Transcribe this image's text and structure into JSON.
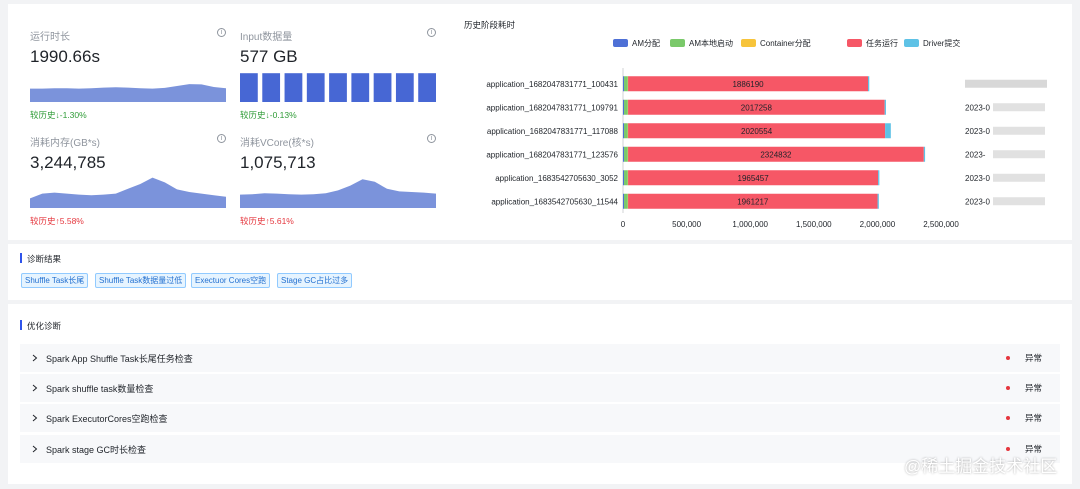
{
  "metrics": [
    {
      "label": "运行时长",
      "value": "1990.66s",
      "compare": "较历史↓-1.30%",
      "trend": "down",
      "spark_type": "area",
      "spark_values": [
        0.42,
        0.42,
        0.43,
        0.43,
        0.42,
        0.43,
        0.45,
        0.46,
        0.45,
        0.43,
        0.42,
        0.44,
        0.5,
        0.56,
        0.55,
        0.47,
        0.43
      ]
    },
    {
      "label": "Input数据量",
      "value": "577 GB",
      "compare": "较历史↓-0.13%",
      "trend": "down",
      "spark_type": "bar",
      "spark_values": [
        0.9,
        0.9,
        0.9,
        0.9,
        0.9,
        0.9,
        0.9,
        0.9,
        0.9
      ]
    },
    {
      "label": "消耗内存(GB*s)",
      "value": "3,244,785",
      "compare": "较历史↑5.58%",
      "trend": "up",
      "spark_type": "area",
      "spark_values": [
        0.3,
        0.45,
        0.48,
        0.45,
        0.42,
        0.4,
        0.42,
        0.45,
        0.6,
        0.75,
        0.95,
        0.8,
        0.58,
        0.5,
        0.45,
        0.4,
        0.35
      ]
    },
    {
      "label": "消耗VCore(核*s)",
      "value": "1,075,713",
      "compare": "较历史↑5.61%",
      "trend": "up",
      "spark_type": "area",
      "spark_values": [
        0.42,
        0.43,
        0.46,
        0.45,
        0.43,
        0.42,
        0.43,
        0.46,
        0.55,
        0.7,
        0.9,
        0.82,
        0.6,
        0.52,
        0.5,
        0.48,
        0.45
      ]
    }
  ],
  "chart_data": {
    "type": "bar",
    "orientation": "horizontal",
    "stacked": true,
    "title": "历史阶段耗时",
    "legend_position": "top",
    "categories": [
      "application_1682047831771_100431",
      "application_1682047831771_109791",
      "application_1682047831771_117088",
      "application_1682047831771_123576",
      "application_1683542705630_3052",
      "application_1683542705630_11544"
    ],
    "dates": [
      "",
      "2023-0",
      "2023-0",
      "2023-",
      "2023-0",
      "2023-0"
    ],
    "series": [
      {
        "name": "AM分配",
        "color": "#4e70d6",
        "values": [
          8000,
          8000,
          8000,
          8000,
          8000,
          8000
        ]
      },
      {
        "name": "AM本地启动",
        "color": "#7ac96a",
        "values": [
          30000,
          30000,
          30000,
          30000,
          30000,
          30000
        ]
      },
      {
        "name": "Container分配",
        "color": "#f7c43b",
        "values": [
          2000,
          2000,
          2000,
          2000,
          2000,
          2000
        ]
      },
      {
        "name": "任务运行",
        "color": "#f65766",
        "values": [
          1886190,
          2017258,
          2020554,
          2324832,
          1965457,
          1961217
        ],
        "labels": [
          "1886190",
          "2017258",
          "2020554",
          "2324832",
          "1965457",
          "1961217"
        ]
      },
      {
        "name": "Driver提交",
        "color": "#5ec2e6",
        "values": [
          10000,
          10000,
          45000,
          10000,
          10000,
          10000
        ]
      }
    ],
    "xlim": [
      0,
      2500000
    ],
    "xticks": [
      0,
      500000,
      1000000,
      1500000,
      2000000,
      2500000
    ],
    "xtick_labels": [
      "0",
      "500,000",
      "1,000,000",
      "1,500,000",
      "2,000,000",
      "2,500,000"
    ],
    "grid": false
  },
  "diagnosis": {
    "title": "诊断结果",
    "tags": [
      "Shuffle Task长尾",
      "Shuffle Task数据量过低",
      "Exectuor Cores空跑",
      "Stage GC占比过多"
    ]
  },
  "optimization": {
    "title": "优化诊断",
    "rows": [
      {
        "title": "Spark App Shuffle Task长尾任务检查",
        "status": "异常"
      },
      {
        "title": "Spark shuffle task数量检查",
        "status": "异常"
      },
      {
        "title": "Spark ExecutorCores空跑检查",
        "status": "异常"
      },
      {
        "title": "Spark stage GC时长检查",
        "status": "异常"
      }
    ]
  },
  "watermark": "@稀土掘金技术社区",
  "colors": {
    "accent": "#2f54eb",
    "spark_fill": "#7b93db",
    "spark_bar": "#4767d4",
    "danger": "#e5373e",
    "success": "#2e9b36"
  }
}
